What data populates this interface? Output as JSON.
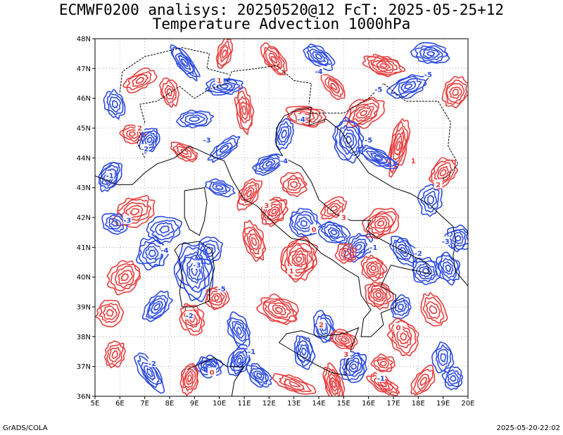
{
  "title_line1": "ECMWF0200 analisys: 20250520@12 FcT: 2025-05-25+12",
  "title_line2": "Temperature Advection 1000hPa",
  "footer_left": "GrADS/COLA",
  "footer_right": "2025-05-20-22:02",
  "lat_labels": [
    "48N",
    "47N",
    "46N",
    "45N",
    "44N",
    "43N",
    "42N",
    "41N",
    "40N",
    "39N",
    "38N",
    "37N",
    "36N"
  ],
  "lon_labels": [
    "5E",
    "6E",
    "7E",
    "8E",
    "9E",
    "10E",
    "11E",
    "12E",
    "13E",
    "14E",
    "15E",
    "16E",
    "17E",
    "18E",
    "19E",
    "20E"
  ],
  "colors": {
    "positive": "#e83c3c",
    "negative": "#2a49e0",
    "coast": "#000000",
    "grid": "#a0a0a0"
  },
  "contour_labels": [
    {
      "text": "-1",
      "c": "negative"
    },
    {
      "text": "-2",
      "c": "negative"
    },
    {
      "text": "-3",
      "c": "negative"
    },
    {
      "text": "-4",
      "c": "negative"
    },
    {
      "text": "-5",
      "c": "negative"
    },
    {
      "text": "1",
      "c": "positive"
    },
    {
      "text": "2",
      "c": "positive"
    },
    {
      "text": "3",
      "c": "positive"
    },
    {
      "text": "0",
      "c": "positive"
    }
  ]
}
